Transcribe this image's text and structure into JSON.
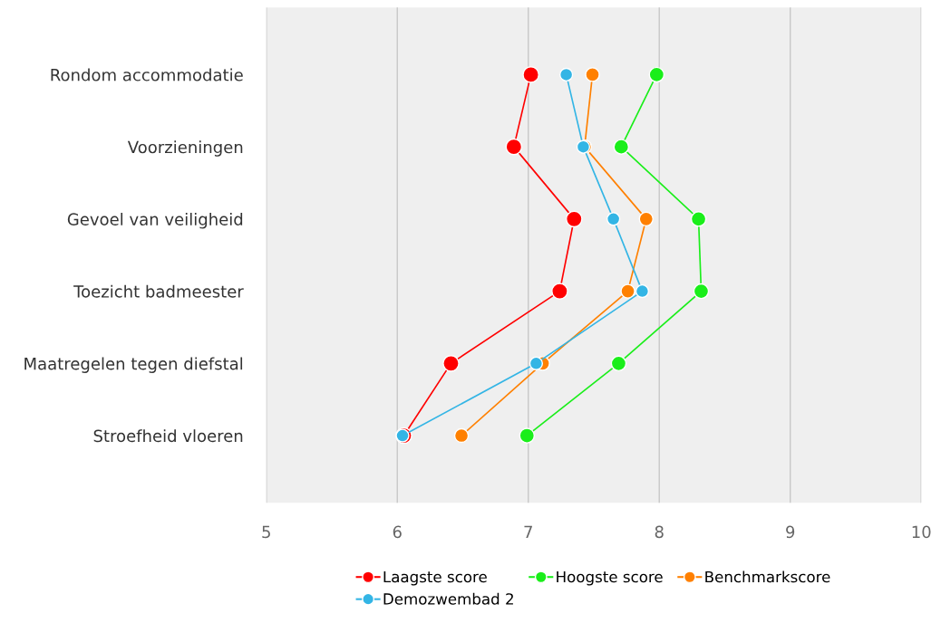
{
  "chart_data": {
    "type": "line",
    "orientation": "horizontal",
    "categories": [
      "Rondom accommodatie",
      "Voorzieningen",
      "Gevoel van veiligheid",
      "Toezicht badmeester",
      "Maatregelen tegen diefstal",
      "Stroefheid vloeren"
    ],
    "series": [
      {
        "name": "Laagste score",
        "color": "#ff0000",
        "values": [
          7.02,
          6.89,
          7.35,
          7.24,
          6.41,
          6.05
        ]
      },
      {
        "name": "Hoogste score",
        "color": "#1aee1a",
        "values": [
          7.98,
          7.71,
          8.3,
          8.32,
          7.69,
          6.99
        ]
      },
      {
        "name": "Benchmarkscore",
        "color": "#ff8000",
        "values": [
          7.49,
          7.43,
          7.9,
          7.76,
          7.11,
          6.49
        ]
      },
      {
        "name": "Demozwembad 2",
        "color": "#33b5e5",
        "values": [
          7.29,
          7.42,
          7.65,
          7.87,
          7.06,
          6.04
        ]
      }
    ],
    "xlim": [
      5,
      10
    ],
    "xticks": [
      5,
      6,
      7,
      8,
      9,
      10
    ],
    "grid": "x",
    "legend": "bottom",
    "marker": "circle",
    "line_style": "solid"
  }
}
